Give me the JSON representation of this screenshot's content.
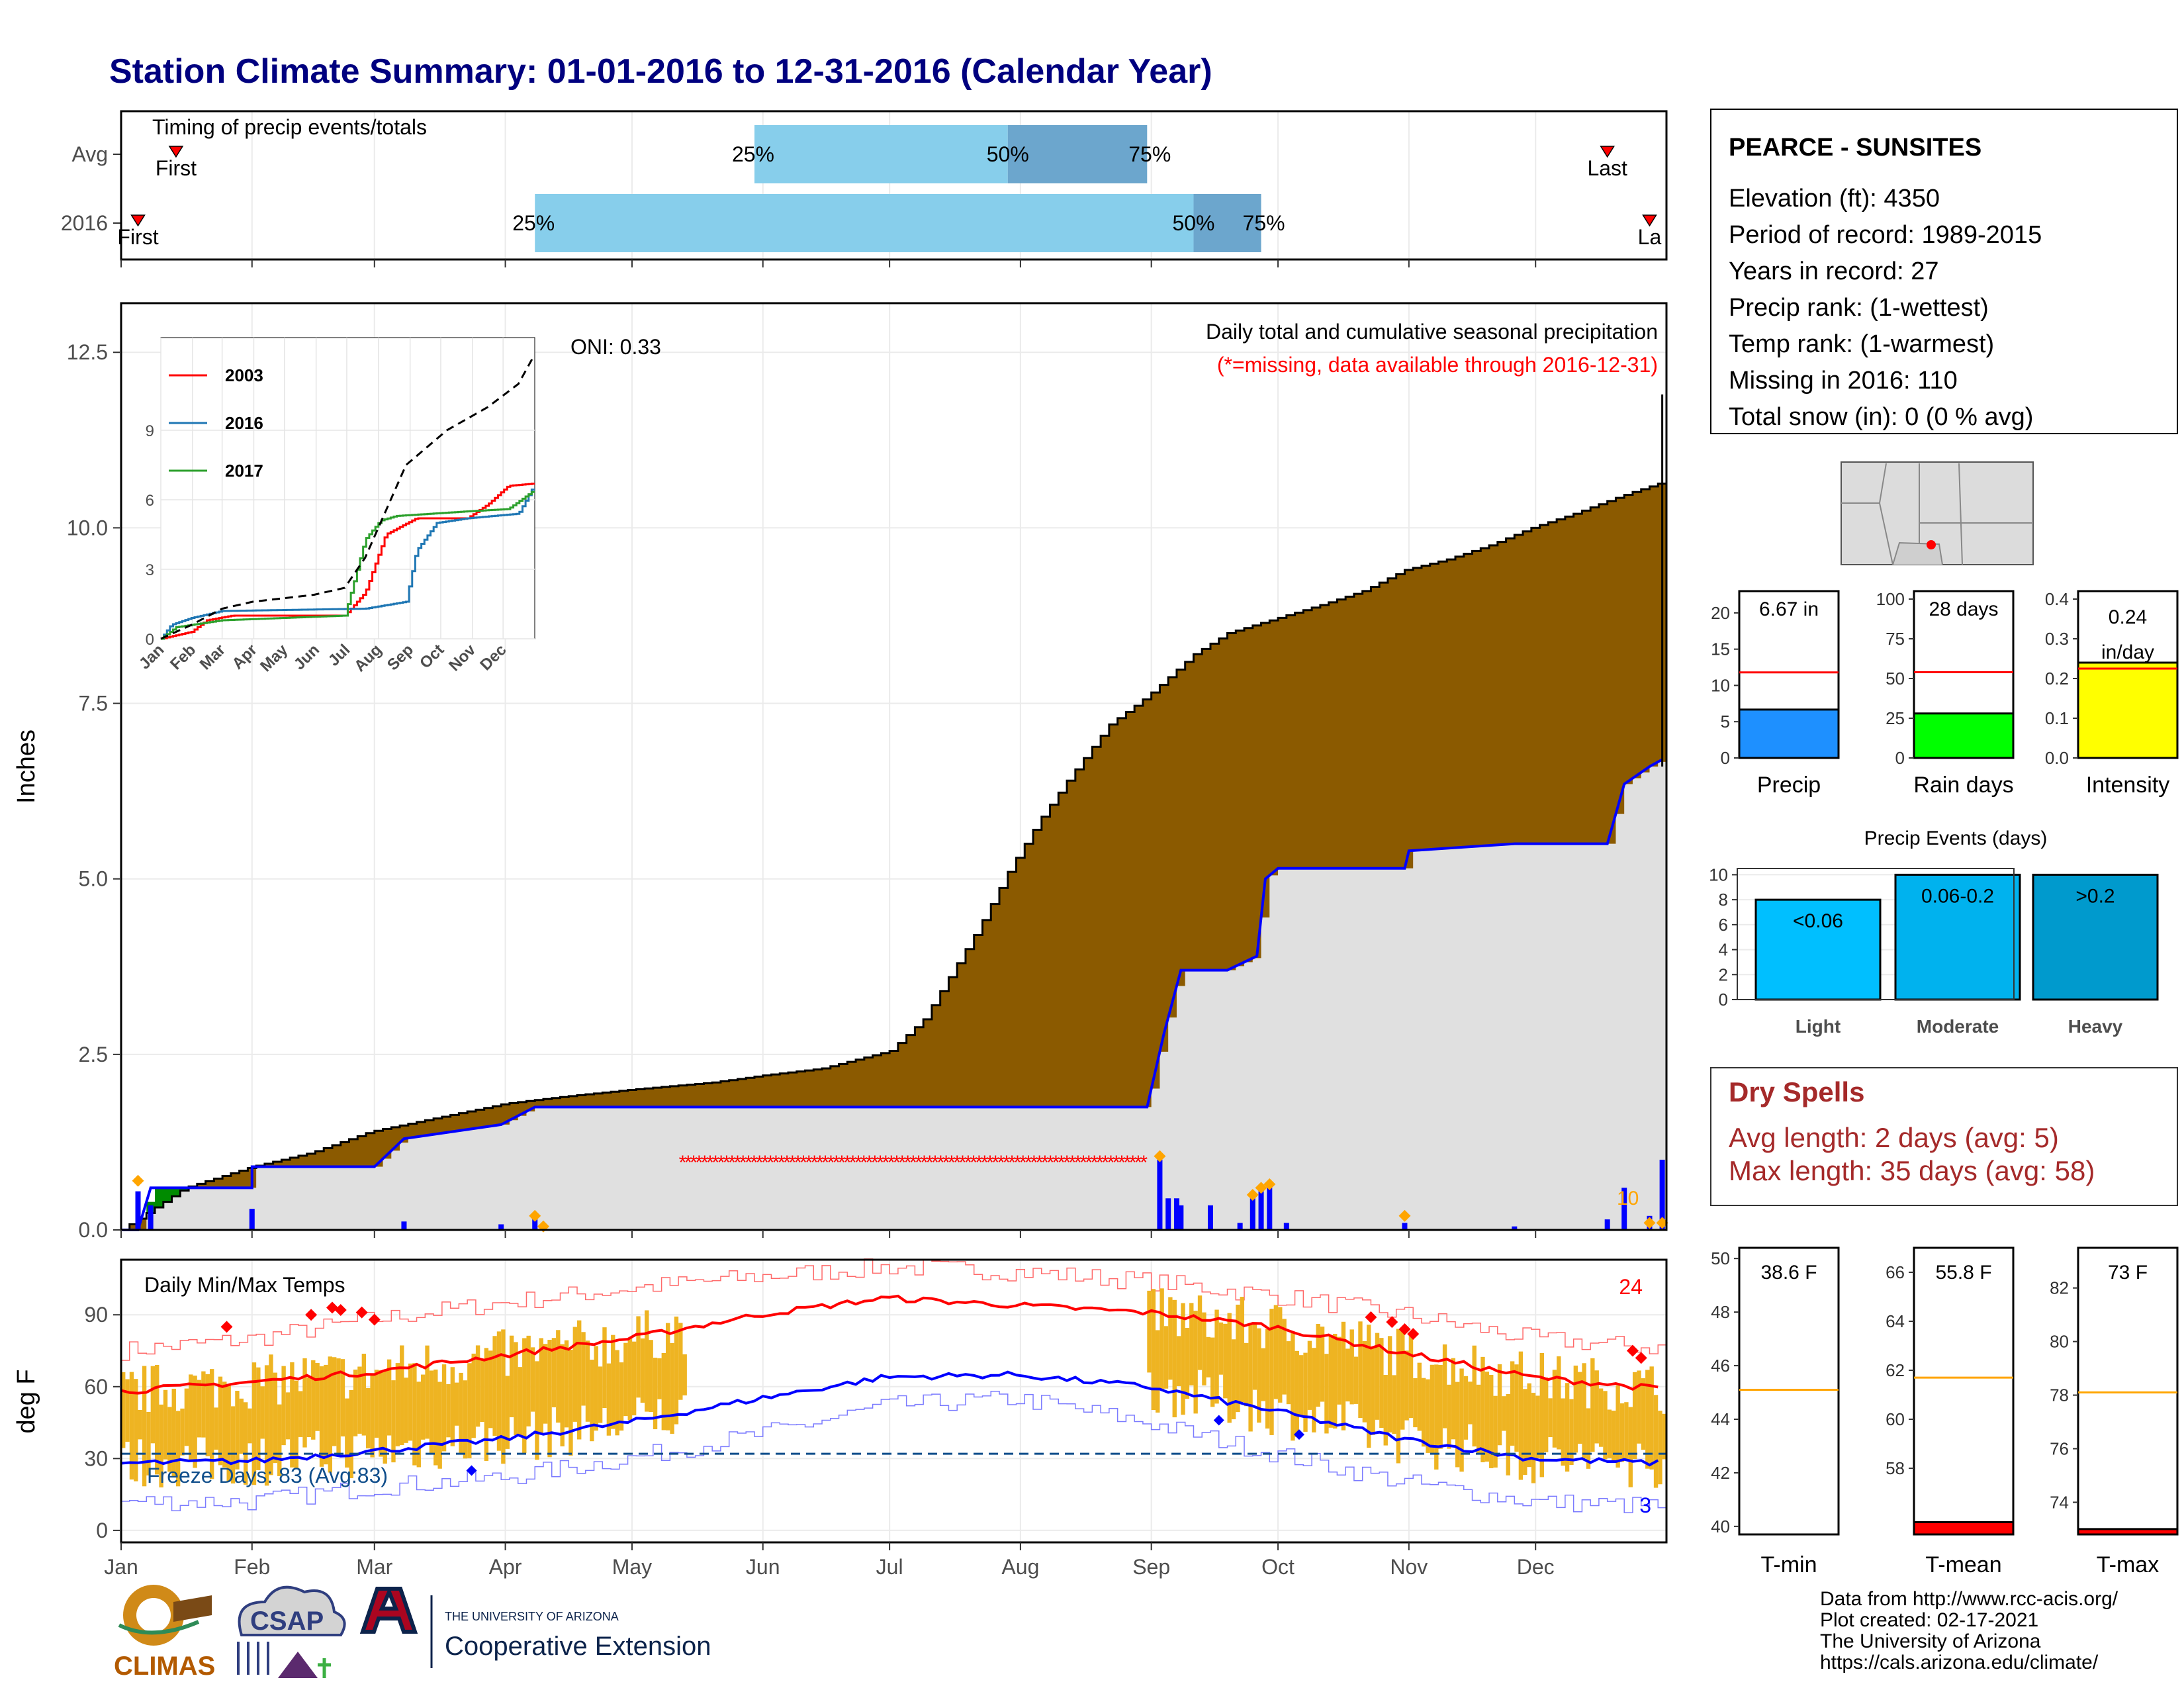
{
  "title": "Station Climate Summary: 01-01-2016 to 12-31-2016 (Calendar Year)",
  "colors": {
    "title": "#00007f",
    "pct_light": "#87ceeb",
    "pct_dark": "#6ca6cd",
    "brown": "#8b5a00",
    "green": "#008b00",
    "gray_fill": "#e0e0e0",
    "blue": "#0000ff",
    "red": "#ff0000",
    "orange": "#ffa500",
    "gold": "#eeb422",
    "dark_red": "#a52a2a",
    "freeze": "#104e8b"
  },
  "months": [
    "Jan",
    "Feb",
    "Mar",
    "Apr",
    "May",
    "Jun",
    "Jul",
    "Aug",
    "Sep",
    "Oct",
    "Nov",
    "Dec"
  ],
  "timing": {
    "label": "Timing of precip events/totals",
    "rows": [
      {
        "name": "Avg",
        "first_label": "First",
        "last_label": "Last",
        "first_doy": 13,
        "last_doy": 352,
        "p25_doy": 150,
        "p50_doy": 210,
        "p75_doy": 243,
        "p25_label": "25%",
        "p50_label": "50%",
        "p75_label": "75%"
      },
      {
        "name": "2016",
        "first_label": "First",
        "last_label": "La",
        "first_doy": 4,
        "last_doy": 362,
        "p25_doy": 98,
        "p50_doy": 254,
        "p75_doy": 270,
        "p25_label": "25%",
        "p50_label": "50%",
        "p75_label": "75%"
      }
    ]
  },
  "precip_panel": {
    "ylabel": "Inches",
    "yticks": [
      "0.0",
      "2.5",
      "5.0",
      "7.5",
      "10.0",
      "12.5"
    ],
    "ymax": 13.2,
    "title_right": "Daily total and cumulative seasonal precipitation",
    "missing_note": "(*=missing, data available through 2016-12-31)",
    "oni_label": "ONI: 0.33",
    "count_label": "10",
    "missing_range_doy": [
      133,
      243
    ],
    "avg_cumulative": [
      [
        0,
        0
      ],
      [
        15,
        0.6
      ],
      [
        31,
        0.9
      ],
      [
        45,
        1.1
      ],
      [
        59,
        1.4
      ],
      [
        75,
        1.6
      ],
      [
        91,
        1.8
      ],
      [
        105,
        1.9
      ],
      [
        121,
        2.0
      ],
      [
        140,
        2.1
      ],
      [
        152,
        2.2
      ],
      [
        166,
        2.3
      ],
      [
        182,
        2.55
      ],
      [
        190,
        3.0
      ],
      [
        196,
        3.6
      ],
      [
        203,
        4.3
      ],
      [
        210,
        5.1
      ],
      [
        217,
        5.8
      ],
      [
        224,
        6.4
      ],
      [
        234,
        7.2
      ],
      [
        243,
        7.6
      ],
      [
        254,
        8.2
      ],
      [
        262,
        8.5
      ],
      [
        273,
        8.7
      ],
      [
        284,
        8.9
      ],
      [
        294,
        9.1
      ],
      [
        304,
        9.4
      ],
      [
        314,
        9.55
      ],
      [
        324,
        9.75
      ],
      [
        334,
        10.0
      ],
      [
        344,
        10.2
      ],
      [
        355,
        10.45
      ],
      [
        365,
        10.65
      ]
    ],
    "cum_2016": [
      [
        0,
        0
      ],
      [
        4,
        0
      ],
      [
        7,
        0.6
      ],
      [
        31,
        0.6
      ],
      [
        31,
        0.9
      ],
      [
        60,
        0.9
      ],
      [
        67,
        1.3
      ],
      [
        90,
        1.5
      ],
      [
        98,
        1.75
      ],
      [
        243,
        1.75
      ],
      [
        247,
        2.8
      ],
      [
        251,
        3.7
      ],
      [
        262,
        3.7
      ],
      [
        269,
        3.9
      ],
      [
        271,
        5.0
      ],
      [
        274,
        5.15
      ],
      [
        304,
        5.15
      ],
      [
        305,
        5.4
      ],
      [
        330,
        5.5
      ],
      [
        352,
        5.5
      ],
      [
        356,
        6.35
      ],
      [
        362,
        6.6
      ],
      [
        365,
        6.7
      ]
    ],
    "daily_2016": [
      [
        4,
        0.55
      ],
      [
        7,
        0.35
      ],
      [
        31,
        0.3
      ],
      [
        67,
        0.12
      ],
      [
        90,
        0.08
      ],
      [
        98,
        0.15
      ],
      [
        246,
        1.0
      ],
      [
        248,
        0.45
      ],
      [
        250,
        0.45
      ],
      [
        251,
        0.35
      ],
      [
        258,
        0.35
      ],
      [
        265,
        0.1
      ],
      [
        268,
        0.45
      ],
      [
        270,
        0.55
      ],
      [
        272,
        0.6
      ],
      [
        276,
        0.1
      ],
      [
        304,
        0.1
      ],
      [
        330,
        0.05
      ],
      [
        352,
        0.15
      ],
      [
        356,
        0.6
      ],
      [
        362,
        0.2
      ],
      [
        365,
        1.0
      ]
    ]
  },
  "inset": {
    "yticks": [
      "0",
      "3",
      "6",
      "9"
    ],
    "xticks": [
      "Jan",
      "Feb",
      "Mar",
      "Apr",
      "May",
      "Jun",
      "Jul",
      "Aug",
      "Sep",
      "Oct",
      "Nov",
      "Dec"
    ],
    "series": [
      {
        "name": "2003",
        "color": "#ff0000",
        "points": [
          [
            0,
            0
          ],
          [
            30,
            0.3
          ],
          [
            45,
            0.8
          ],
          [
            70,
            1.0
          ],
          [
            180,
            1.0
          ],
          [
            200,
            2.0
          ],
          [
            220,
            4.5
          ],
          [
            250,
            5.2
          ],
          [
            300,
            5.2
          ],
          [
            320,
            5.8
          ],
          [
            340,
            6.6
          ],
          [
            365,
            6.7
          ]
        ]
      },
      {
        "name": "2016",
        "color": "#1f77b4",
        "points": [
          [
            0,
            0
          ],
          [
            10,
            0.6
          ],
          [
            30,
            0.9
          ],
          [
            60,
            1.2
          ],
          [
            200,
            1.3
          ],
          [
            240,
            1.6
          ],
          [
            250,
            3.8
          ],
          [
            270,
            5.0
          ],
          [
            300,
            5.2
          ],
          [
            350,
            5.4
          ],
          [
            365,
            6.6
          ]
        ]
      },
      {
        "name": "2017",
        "color": "#2ca02c",
        "points": [
          [
            0,
            0
          ],
          [
            15,
            0.5
          ],
          [
            60,
            0.8
          ],
          [
            180,
            1.0
          ],
          [
            200,
            4.3
          ],
          [
            215,
            5.1
          ],
          [
            230,
            5.3
          ],
          [
            300,
            5.5
          ],
          [
            340,
            5.6
          ],
          [
            365,
            6.4
          ]
        ]
      }
    ],
    "avg": [
      [
        0,
        0
      ],
      [
        30,
        0.6
      ],
      [
        60,
        1.3
      ],
      [
        90,
        1.6
      ],
      [
        150,
        1.9
      ],
      [
        180,
        2.2
      ],
      [
        200,
        3.5
      ],
      [
        220,
        5.5
      ],
      [
        240,
        7.5
      ],
      [
        280,
        9.0
      ],
      [
        320,
        10.0
      ],
      [
        350,
        11.0
      ],
      [
        365,
        12.2
      ]
    ],
    "ymax": 13
  },
  "temp_panel": {
    "ylabel": "deg F",
    "title": "Daily Min/Max Temps",
    "yticks": [
      "0",
      "30",
      "60",
      "90"
    ],
    "freeze_label": "Freeze Days: 83 (Avg:83)",
    "hot_count": "24",
    "cold_count": "3",
    "missing_range_doy": [
      133,
      243
    ],
    "avg_max": [
      [
        0,
        58
      ],
      [
        31,
        62
      ],
      [
        59,
        66
      ],
      [
        90,
        73
      ],
      [
        120,
        80
      ],
      [
        151,
        90
      ],
      [
        181,
        97
      ],
      [
        212,
        94
      ],
      [
        243,
        91
      ],
      [
        273,
        85
      ],
      [
        304,
        74
      ],
      [
        334,
        64
      ],
      [
        365,
        59
      ]
    ],
    "avg_min": [
      [
        0,
        28
      ],
      [
        31,
        29
      ],
      [
        59,
        33
      ],
      [
        90,
        38
      ],
      [
        120,
        45
      ],
      [
        151,
        55
      ],
      [
        181,
        64
      ],
      [
        212,
        65
      ],
      [
        243,
        60
      ],
      [
        273,
        50
      ],
      [
        304,
        38
      ],
      [
        334,
        30
      ],
      [
        365,
        28
      ]
    ],
    "rec_max": [
      [
        0,
        75
      ],
      [
        31,
        80
      ],
      [
        59,
        88
      ],
      [
        90,
        95
      ],
      [
        120,
        101
      ],
      [
        151,
        106
      ],
      [
        181,
        110
      ],
      [
        212,
        108
      ],
      [
        243,
        104
      ],
      [
        273,
        98
      ],
      [
        304,
        90
      ],
      [
        334,
        80
      ],
      [
        365,
        76
      ]
    ],
    "rec_min": [
      [
        0,
        12
      ],
      [
        31,
        12
      ],
      [
        59,
        18
      ],
      [
        90,
        22
      ],
      [
        120,
        30
      ],
      [
        151,
        40
      ],
      [
        181,
        52
      ],
      [
        212,
        55
      ],
      [
        243,
        45
      ],
      [
        273,
        32
      ],
      [
        304,
        20
      ],
      [
        334,
        12
      ],
      [
        365,
        10
      ]
    ]
  },
  "station": {
    "name": "PEARCE - SUNSITES",
    "lines": [
      "Elevation (ft): 4350",
      "Period of record: 1989-2015",
      "Years in record: 27",
      "Precip rank:  (1-wettest)",
      "Temp rank:  (1-warmest)",
      "Missing in 2016: 110",
      "Total snow (in): 0 (0 % avg)"
    ]
  },
  "bar_gauges": [
    {
      "label": "Precip",
      "value_label": "6.67 in",
      "value": 6.67,
      "avg": 11.8,
      "ymax": 23,
      "yticks": [
        "0",
        "5",
        "10",
        "15",
        "20"
      ],
      "tick_vals": [
        0,
        5,
        10,
        15,
        20
      ],
      "color": "#1e90ff"
    },
    {
      "label": "Rain days",
      "value_label": "28 days",
      "value": 28,
      "avg": 54,
      "ymax": 105,
      "yticks": [
        "0",
        "25",
        "50",
        "75",
        "100"
      ],
      "tick_vals": [
        0,
        25,
        50,
        75,
        100
      ],
      "color": "#00ff00"
    },
    {
      "label": "Intensity",
      "value_label": "0.24",
      "value_label2": "in/day",
      "value": 0.24,
      "avg": 0.225,
      "ymax": 0.42,
      "yticks": [
        "0.0",
        "0.1",
        "0.2",
        "0.3",
        "0.4"
      ],
      "tick_vals": [
        0,
        0.1,
        0.2,
        0.3,
        0.4
      ],
      "color": "#ffff00"
    }
  ],
  "precip_events": {
    "title": "Precip Events (days)",
    "yticks": [
      "0",
      "2",
      "4",
      "6",
      "8",
      "10"
    ],
    "ymax": 10.5,
    "bars": [
      {
        "label": "Light",
        "range_label": "<0.06",
        "value": 8,
        "color": "#00bfff"
      },
      {
        "label": "Moderate",
        "range_label": "0.06-0.2",
        "value": 10,
        "color": "#00b2ee"
      },
      {
        "label": "Heavy",
        "range_label": ">0.2",
        "value": 10,
        "color": "#009acd"
      }
    ]
  },
  "dry_spells": {
    "title": "Dry Spells",
    "lines": [
      "Avg length: 2 days (avg: 5)",
      "Max length: 35 days (avg: 58)"
    ]
  },
  "temp_gauges": [
    {
      "label": "T-min",
      "value_label": "38.6 F",
      "value": 38.6,
      "avg": 45.1,
      "ymin": 39.7,
      "ymax": 50.4,
      "yticks": [
        "40",
        "42",
        "44",
        "46",
        "48",
        "50"
      ],
      "tick_vals": [
        40,
        42,
        44,
        46,
        48,
        50
      ]
    },
    {
      "label": "T-mean",
      "value_label": "55.8 F",
      "value": 55.8,
      "avg": 61.7,
      "ymin": 55.3,
      "ymax": 67.0,
      "yticks": [
        "58",
        "60",
        "62",
        "64",
        "66"
      ],
      "tick_vals": [
        58,
        60,
        62,
        64,
        66
      ]
    },
    {
      "label": "T-max",
      "value_label": "73 F",
      "value": 73,
      "avg": 78.1,
      "ymin": 72.8,
      "ymax": 83.5,
      "yticks": [
        "74",
        "76",
        "78",
        "80",
        "82"
      ],
      "tick_vals": [
        74,
        76,
        78,
        80,
        82
      ]
    }
  ],
  "logos": {
    "climas": "CLIMAS",
    "csap": "CSAP",
    "ua_small": "THE UNIVERSITY OF ARIZONA",
    "coop": "Cooperative Extension"
  },
  "credits": [
    "Data from http://www.rcc-acis.org/",
    "Plot created: 02-17-2021",
    "The University of Arizona",
    "https://cals.arizona.edu/climate/"
  ]
}
